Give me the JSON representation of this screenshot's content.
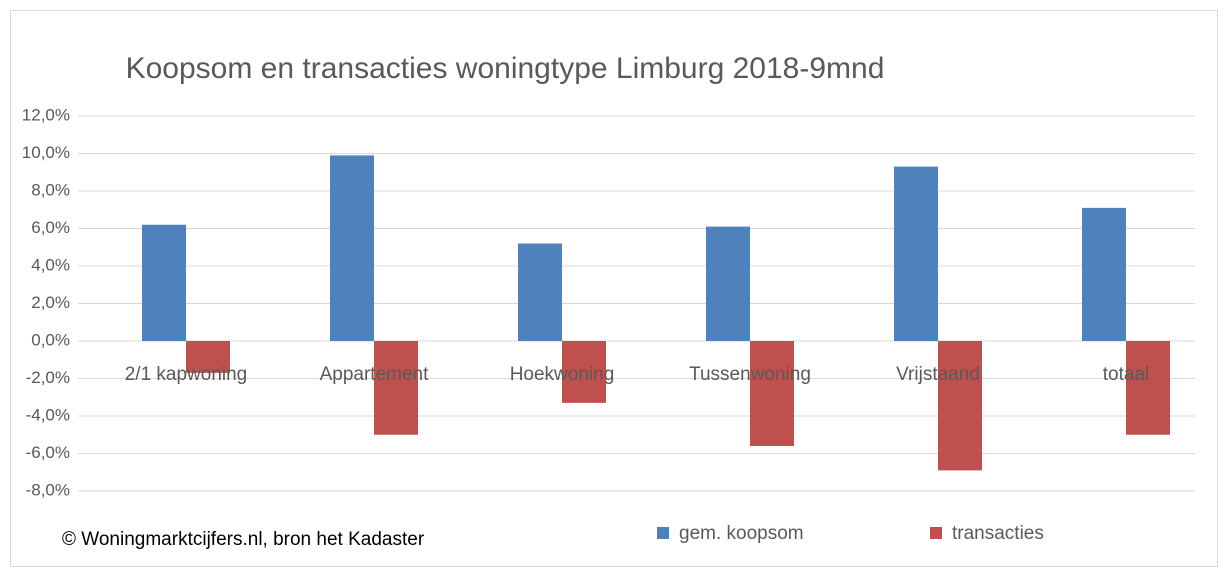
{
  "chart_data": {
    "type": "bar",
    "title": "Koopsom en transacties woningtype Limburg 2018-9mnd",
    "source": "© Woningmarktcijfers.nl, bron het Kadaster",
    "categories": [
      "2/1 kapwoning",
      "Appartement",
      "Hoekwoning",
      "Tussenwoning",
      "Vrijstaand",
      "totaal"
    ],
    "series": [
      {
        "name": "gem. koopsom",
        "color": "#4f81bd",
        "values": [
          6.2,
          9.9,
          5.2,
          6.1,
          9.3,
          7.1
        ]
      },
      {
        "name": "transacties",
        "color": "#c0504d",
        "values": [
          -1.7,
          -5.0,
          -3.3,
          -5.6,
          -6.9,
          -5.0
        ]
      }
    ],
    "ylim": [
      -8,
      12
    ],
    "yticks": [
      {
        "value": -8,
        "label": "-8,0%"
      },
      {
        "value": -6,
        "label": "-6,0%"
      },
      {
        "value": -4,
        "label": "-4,0%"
      },
      {
        "value": -2,
        "label": "-2,0%"
      },
      {
        "value": 0,
        "label": "0,0%"
      },
      {
        "value": 2,
        "label": "2,0%"
      },
      {
        "value": 4,
        "label": "4,0%"
      },
      {
        "value": 6,
        "label": "6,0%"
      },
      {
        "value": 8,
        "label": "8,0%"
      },
      {
        "value": 10,
        "label": "10,0%"
      },
      {
        "value": 12,
        "label": "12,0%"
      }
    ],
    "grid": true,
    "legend": "bottom"
  }
}
